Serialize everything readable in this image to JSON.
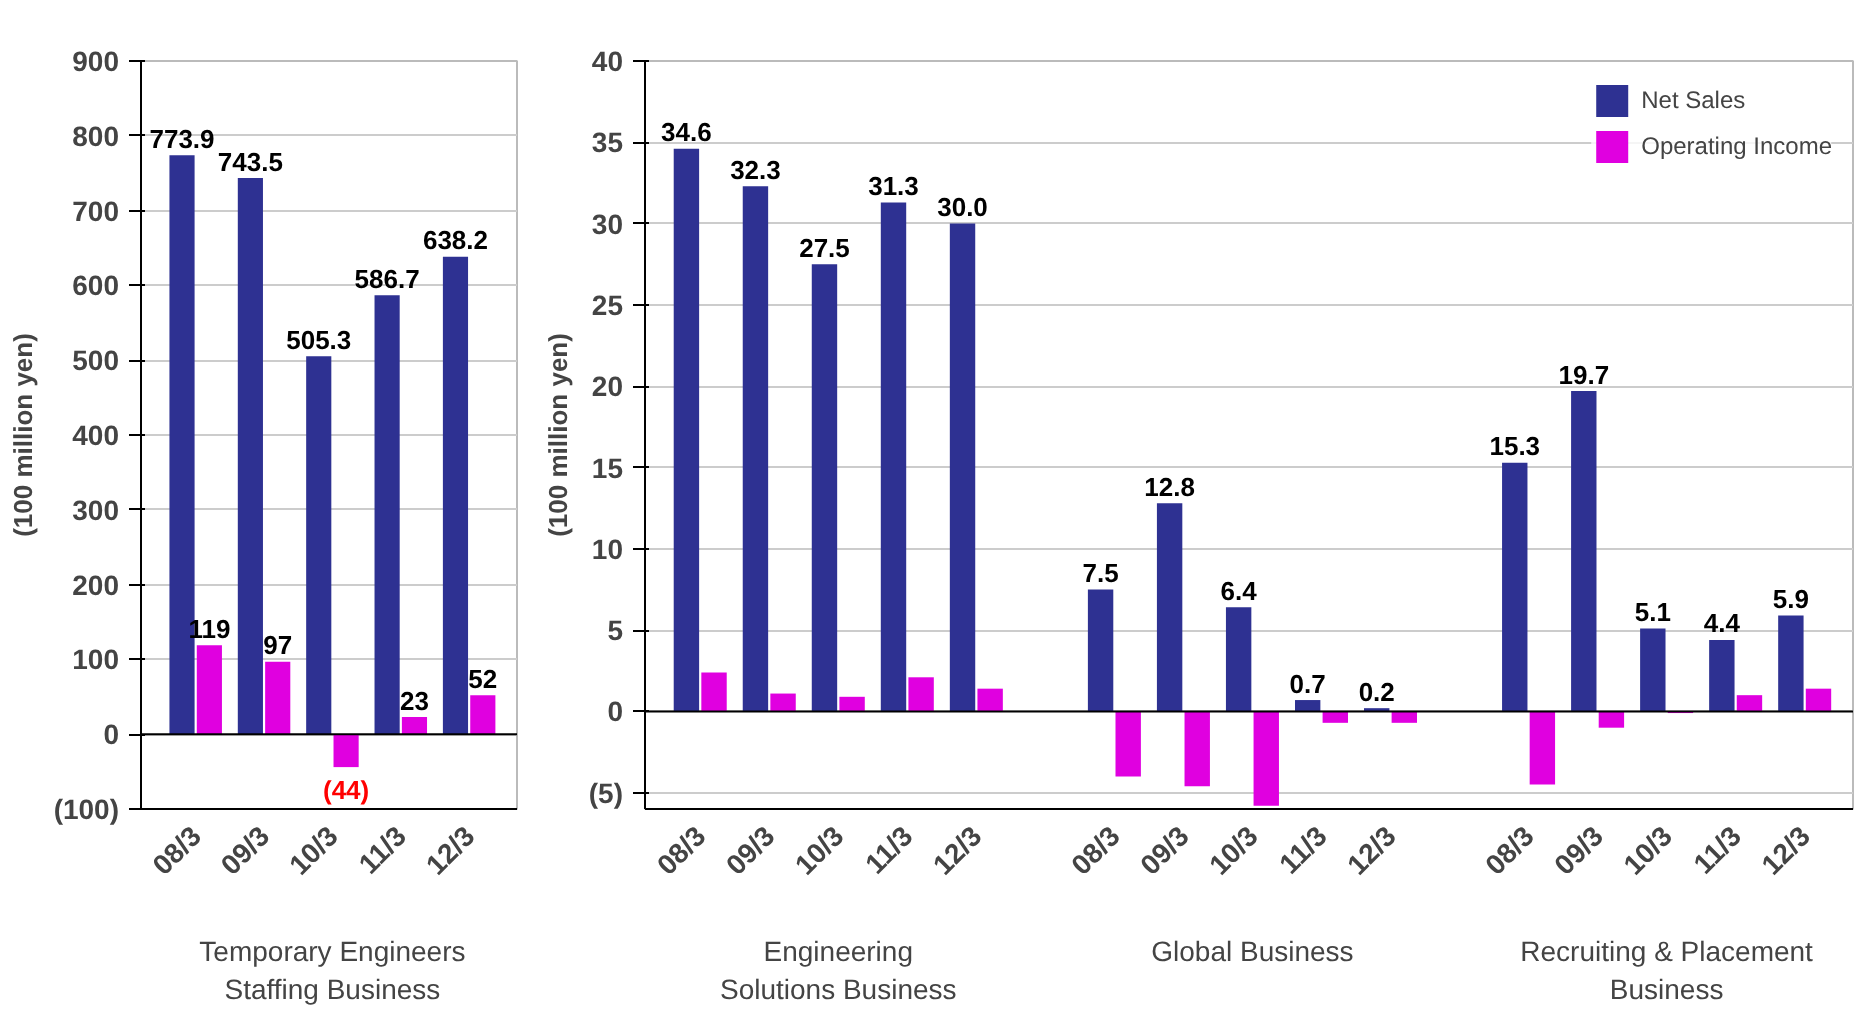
{
  "chart_data": [
    {
      "type": "bar",
      "ylabel": "(100 million yen)",
      "categories": [
        "08/3",
        "09/3",
        "10/3",
        "11/3",
        "12/3"
      ],
      "series": [
        {
          "color": "#2e3192",
          "values": [
            773.9,
            743.5,
            505.3,
            586.7,
            638.2
          ],
          "value_labels": [
            "773.9",
            "743.5",
            "505.3",
            "586.7",
            "638.2"
          ]
        },
        {
          "color": "#e000e0",
          "values": [
            119,
            97,
            -44,
            23,
            52
          ],
          "value_labels": [
            "119",
            "97",
            "(44)",
            "23",
            "52"
          ]
        }
      ],
      "ylim": [
        -100,
        900
      ],
      "yticks": [
        {
          "value": -100,
          "label": "(100)"
        },
        0,
        100,
        200,
        300,
        400,
        500,
        600,
        700,
        800,
        900
      ],
      "grid": "y",
      "legend": false,
      "annotations": [
        "Temporary Engineers\nStaffing Business"
      ]
    },
    {
      "type": "bar",
      "ylabel": "(100 million yen)",
      "categories": [
        "08/3",
        "09/3",
        "10/3",
        "11/3",
        "12/3",
        null,
        "08/3",
        "09/3",
        "10/3",
        "11/3",
        "12/3",
        null,
        "08/3",
        "09/3",
        "10/3",
        "11/3",
        "12/3"
      ],
      "series": [
        {
          "name": "Net Sales",
          "color": "#2e3192",
          "values": [
            34.6,
            32.3,
            27.5,
            31.3,
            30.0,
            null,
            7.5,
            12.8,
            6.4,
            0.7,
            0.2,
            null,
            15.3,
            19.7,
            5.1,
            4.4,
            5.9
          ],
          "value_labels": [
            "34.6",
            "32.3",
            "27.5",
            "31.3",
            "30.0",
            null,
            "7.5",
            "12.8",
            "6.4",
            "0.7",
            "0.2",
            null,
            "15.3",
            "19.7",
            "5.1",
            "4.4",
            "5.9"
          ]
        },
        {
          "name": "Operating Income",
          "color": "#e000e0",
          "values": [
            2.4,
            1.1,
            0.9,
            2.1,
            1.4,
            null,
            -4.0,
            -4.6,
            -5.8,
            -0.7,
            -0.7,
            null,
            -4.5,
            -1.0,
            -0.1,
            1.0,
            1.4
          ]
        }
      ],
      "ylim": [
        -6,
        40
      ],
      "yticks": [
        {
          "value": -5,
          "label": "(5)"
        },
        0,
        5,
        10,
        15,
        20,
        25,
        30,
        35,
        40
      ],
      "grid": "y",
      "legend": "top right",
      "annotations": [
        "Engineering\nSolutions Business",
        "Global Business",
        "Recruiting & Placement\nBusiness"
      ]
    }
  ]
}
